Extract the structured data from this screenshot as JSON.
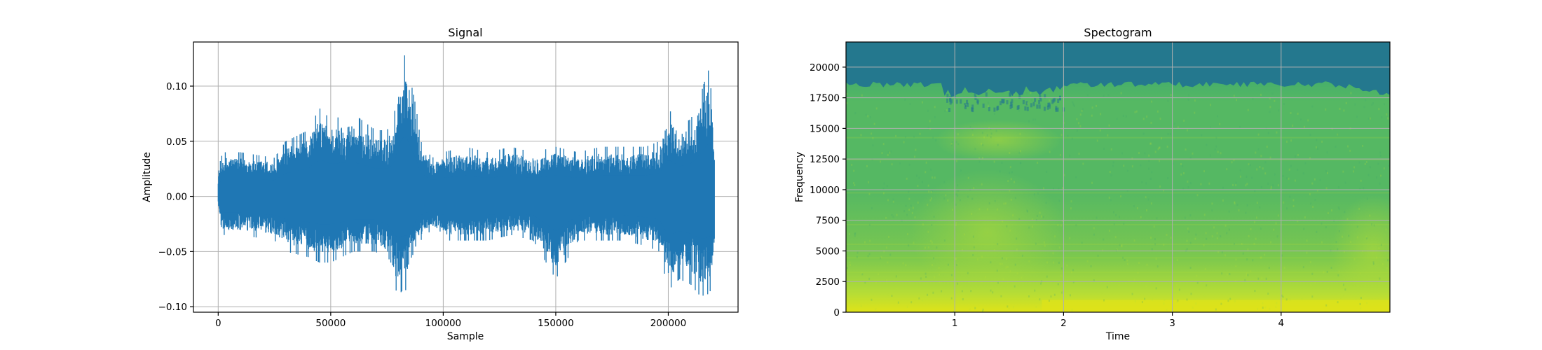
{
  "chart_data": [
    {
      "type": "line",
      "title": "Signal",
      "xlabel": "Sample",
      "ylabel": "Amplitude",
      "xlim": [
        -11000,
        231000
      ],
      "ylim": [
        -0.105,
        0.14
      ],
      "xticks": [
        0,
        50000,
        100000,
        150000,
        200000
      ],
      "xtick_labels": [
        "0",
        "50000",
        "100000",
        "150000",
        "200000"
      ],
      "yticks": [
        -0.1,
        -0.05,
        0.0,
        0.05,
        0.1
      ],
      "ytick_labels": [
        "−0.10",
        "−0.05",
        "0.00",
        "0.05",
        "0.10"
      ],
      "grid": true,
      "color": "#1f77b4",
      "sample_count": 220500,
      "envelope": {
        "x": [
          0,
          2000,
          10000,
          25000,
          30000,
          40000,
          45000,
          50000,
          60000,
          70000,
          75000,
          78000,
          80000,
          82000,
          84000,
          86000,
          88000,
          90000,
          95000,
          100000,
          110000,
          120000,
          130000,
          140000,
          150000,
          160000,
          170000,
          180000,
          190000,
          196000,
          200000,
          205000,
          210000,
          214000,
          217000,
          219000,
          220500
        ],
        "upper": [
          0.025,
          0.04,
          0.04,
          0.035,
          0.05,
          0.06,
          0.08,
          0.07,
          0.075,
          0.06,
          0.06,
          0.07,
          0.105,
          0.13,
          0.125,
          0.1,
          0.08,
          0.05,
          0.035,
          0.04,
          0.045,
          0.04,
          0.045,
          0.04,
          0.045,
          0.04,
          0.045,
          0.045,
          0.045,
          0.05,
          0.08,
          0.065,
          0.07,
          0.09,
          0.11,
          0.12,
          0.05
        ],
        "lower": [
          -0.01,
          -0.035,
          -0.035,
          -0.04,
          -0.05,
          -0.055,
          -0.06,
          -0.06,
          -0.05,
          -0.05,
          -0.06,
          -0.08,
          -0.09,
          -0.085,
          -0.085,
          -0.07,
          -0.05,
          -0.04,
          -0.03,
          -0.04,
          -0.04,
          -0.04,
          -0.035,
          -0.04,
          -0.075,
          -0.04,
          -0.04,
          -0.04,
          -0.045,
          -0.05,
          -0.085,
          -0.075,
          -0.08,
          -0.09,
          -0.09,
          -0.085,
          -0.05
        ]
      }
    },
    {
      "type": "heatmap",
      "title": "Spectogram",
      "xlabel": "Time",
      "ylabel": "Frequency",
      "xlim": [
        0,
        5
      ],
      "ylim": [
        0,
        22050
      ],
      "xticks": [
        1,
        2,
        3,
        4
      ],
      "xtick_labels": [
        "1",
        "2",
        "3",
        "4"
      ],
      "yticks": [
        0,
        2500,
        5000,
        7500,
        10000,
        12500,
        15000,
        17500,
        20000
      ],
      "ytick_labels": [
        "0",
        "2500",
        "5000",
        "7500",
        "10000",
        "12500",
        "15000",
        "17500",
        "20000"
      ],
      "grid": true,
      "colormap": "viridis",
      "colors": {
        "top_band": "#24788e",
        "high_band": "#3ea96f",
        "mid_band": "#55b863",
        "low_band": "#7cc84e",
        "bright": "#b6dd36",
        "peak": "#dfe318"
      }
    }
  ]
}
